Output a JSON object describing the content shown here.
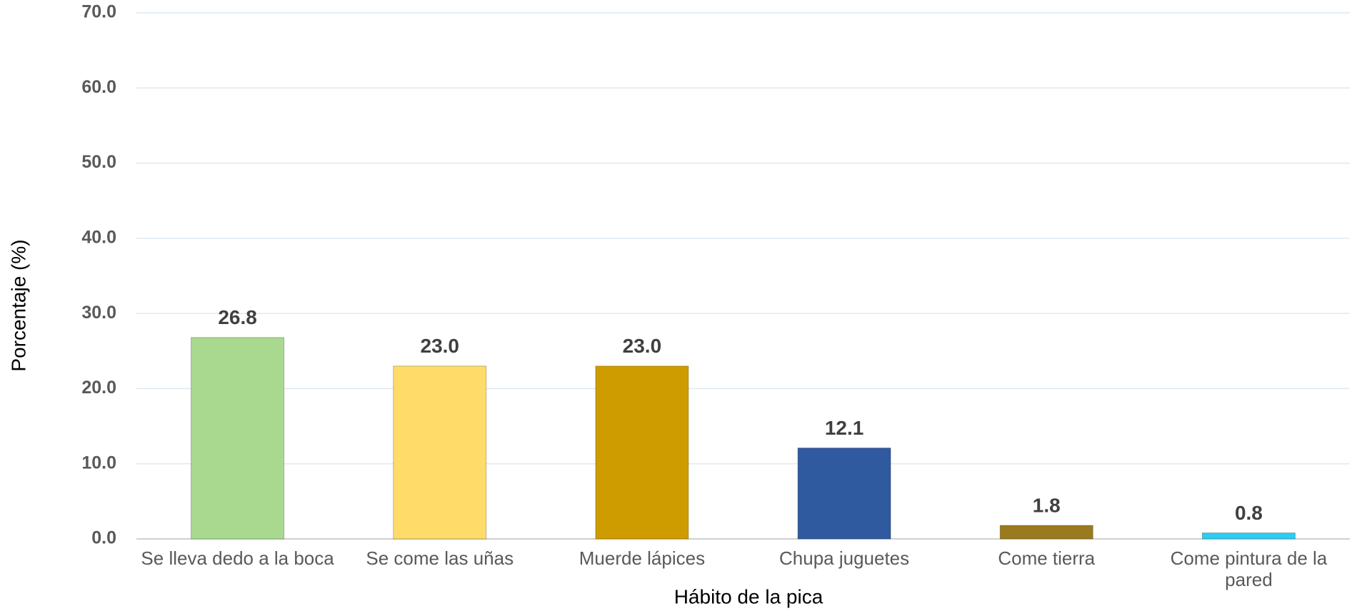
{
  "chart_data": {
    "type": "bar",
    "x_label": "Hábito de la pica",
    "y_label": "Porcentaje (%)",
    "categories": [
      "Se lleva dedo a la boca",
      "Se come las uñas",
      "Muerde lápices",
      "Chupa juguetes",
      "Come tierra",
      "Come pintura de la pared"
    ],
    "values": [
      26.8,
      23.0,
      23.0,
      12.1,
      1.8,
      0.8
    ],
    "value_labels": [
      "26.8",
      "23.0",
      "23.0",
      "12.1",
      "1.8",
      "0.8"
    ],
    "colors": [
      "#a9d98f",
      "#ffdc6a",
      "#cf9c00",
      "#2f5aa0",
      "#9a7a1e",
      "#2ccdf0"
    ],
    "ylim": [
      0,
      70
    ],
    "yticks": [
      {
        "value": 0,
        "label": "0.0"
      },
      {
        "value": 10,
        "label": "10.0"
      },
      {
        "value": 20,
        "label": "20.0"
      },
      {
        "value": 30,
        "label": "30.0"
      },
      {
        "value": 40,
        "label": "40.0"
      },
      {
        "value": 50,
        "label": "50.0"
      },
      {
        "value": 60,
        "label": "60.0"
      },
      {
        "value": 70,
        "label": "70.0"
      }
    ],
    "grid": true
  }
}
